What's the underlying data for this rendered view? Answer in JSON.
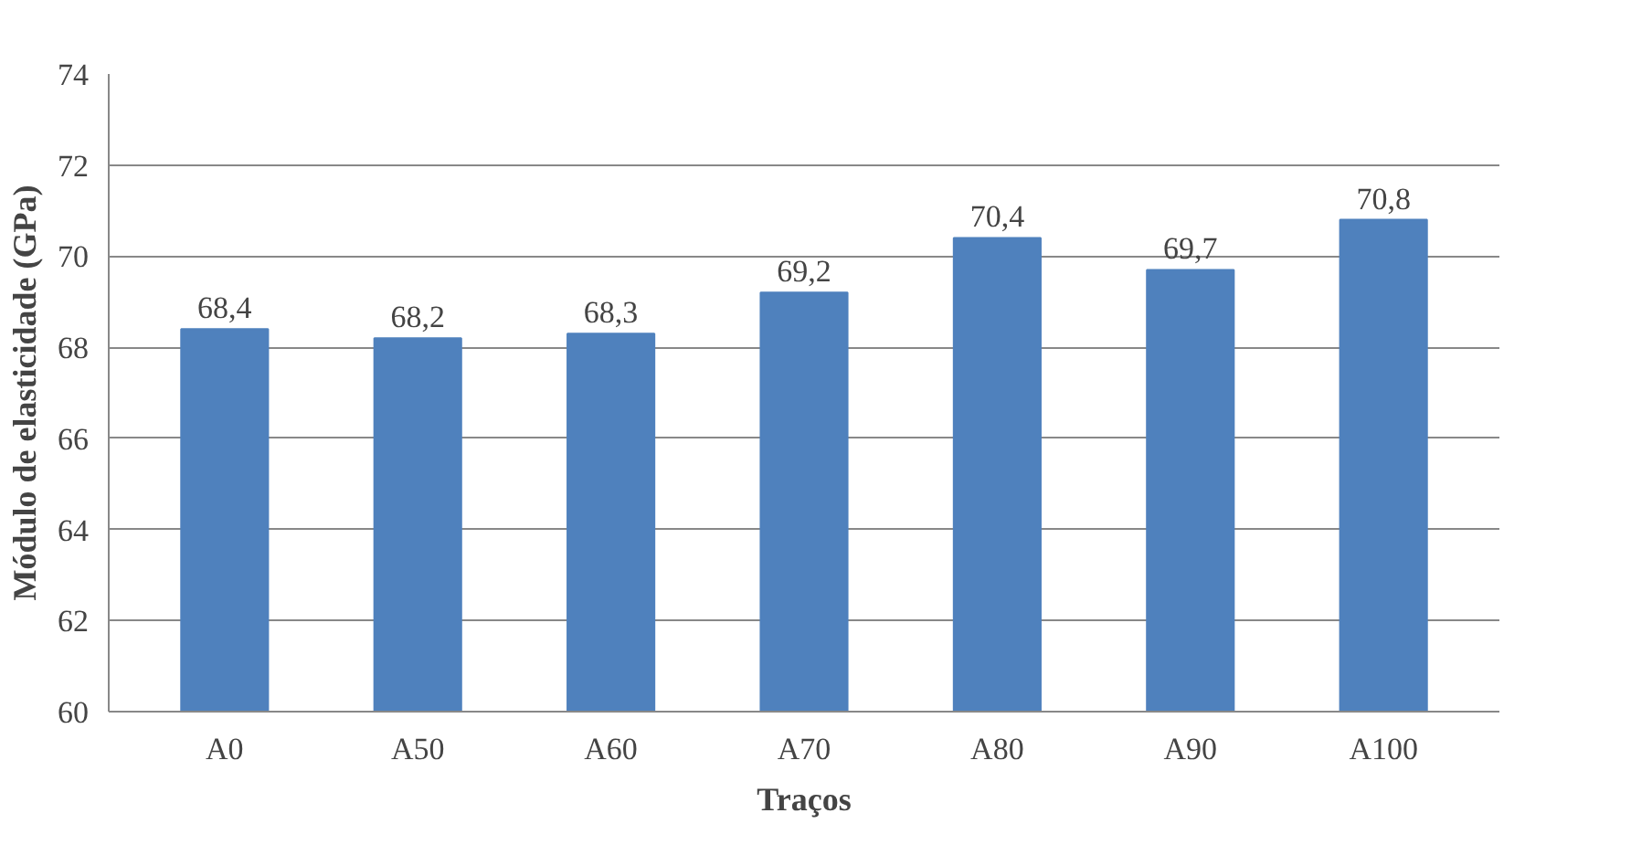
{
  "chart_data": {
    "type": "bar",
    "xlabel": "Traços",
    "ylabel": "Módulo de elasticidade (GPa)",
    "categories": [
      "A0",
      "A50",
      "A60",
      "A70",
      "A80",
      "A90",
      "A100"
    ],
    "values": [
      68.4,
      68.2,
      68.3,
      69.2,
      70.4,
      69.7,
      70.8
    ],
    "value_labels": [
      "68,4",
      "68,2",
      "68,3",
      "69,2",
      "70,4",
      "69,7",
      "70,8"
    ],
    "color": "#4f81bd",
    "ylim": [
      60,
      74
    ],
    "yticks": [
      60,
      62,
      64,
      66,
      68,
      70,
      72,
      74
    ],
    "grid": "y"
  }
}
